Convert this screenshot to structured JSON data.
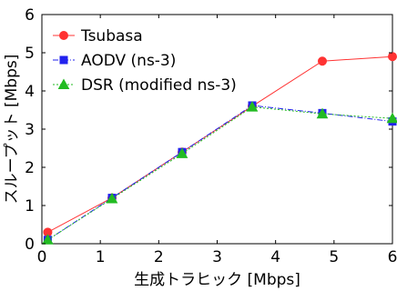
{
  "chart_data": {
    "type": "line",
    "title": "",
    "xlabel": "生成トラヒック [Mbps]",
    "ylabel": "スループット [Mbps]",
    "xlim": [
      0,
      6
    ],
    "ylim": [
      0,
      6
    ],
    "xticks": [
      "0",
      "1",
      "2",
      "3",
      "4",
      "5",
      "6"
    ],
    "yticks": [
      "0",
      "1",
      "2",
      "3",
      "4",
      "5",
      "6"
    ],
    "grid": false,
    "legend_position": "top-left",
    "series": [
      {
        "name": "Tsubasa",
        "color": "#ff3333",
        "marker": "circle",
        "line_style": "solid",
        "x": [
          0.1,
          1.2,
          2.4,
          3.6,
          4.8,
          6.0
        ],
        "y": [
          0.3,
          1.2,
          2.4,
          3.6,
          4.78,
          4.9
        ]
      },
      {
        "name": "AODV (ns-3)",
        "color": "#2222ee",
        "marker": "square",
        "line_style": "dashdot",
        "x": [
          0.1,
          1.2,
          2.4,
          3.6,
          4.8,
          6.0
        ],
        "y": [
          0.1,
          1.2,
          2.4,
          3.62,
          3.42,
          3.2
        ]
      },
      {
        "name": "DSR (modified ns-3)",
        "color": "#22bb22",
        "marker": "triangle",
        "line_style": "dotted",
        "x": [
          0.1,
          1.2,
          2.4,
          3.6,
          4.8,
          6.0
        ],
        "y": [
          0.1,
          1.18,
          2.36,
          3.58,
          3.4,
          3.28
        ]
      }
    ]
  }
}
